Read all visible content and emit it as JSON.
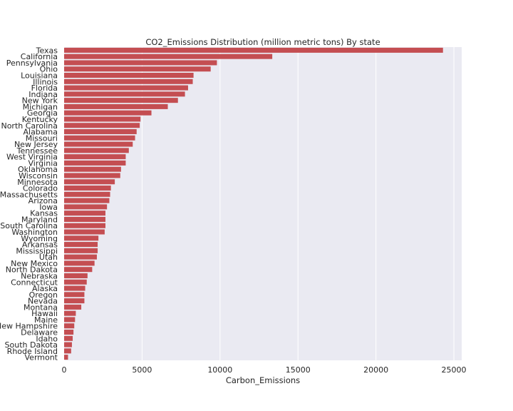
{
  "chart_data": {
    "type": "bar",
    "orientation": "horizontal",
    "title": "CO2_Emissions Distribution (million metric tons) By state",
    "xlabel": "Carbon_Emissions",
    "ylabel": "",
    "xlim": [
      0,
      25500
    ],
    "xticks": [
      0,
      5000,
      10000,
      15000,
      20000,
      25000
    ],
    "grid": true,
    "bar_color": "#c44e52",
    "background_color": "#eaeaf2",
    "grid_color": "#ffffff",
    "categories": [
      "Texas",
      "California",
      "Pennsylvania",
      "Ohio",
      "Louisiana",
      "Illinois",
      "Florida",
      "Indiana",
      "New York",
      "Michigan",
      "Georgia",
      "Kentucky",
      "North Carolina",
      "Alabama",
      "Missouri",
      "New Jersey",
      "Tennessee",
      "West Virginia",
      "Virginia",
      "Oklahoma",
      "Wisconsin",
      "Minnesota",
      "Colorado",
      "Massachusetts",
      "Arizona",
      "Iowa",
      "Kansas",
      "Maryland",
      "South Carolina",
      "Washington",
      "Wyoming",
      "Arkansas",
      "Mississippi",
      "Utah",
      "New Mexico",
      "North Dakota",
      "Nebraska",
      "Connecticut",
      "Alaska",
      "Oregon",
      "Nevada",
      "Montana",
      "Hawaii",
      "Maine",
      "New Hampshire",
      "Delaware",
      "Idaho",
      "South Dakota",
      "Rhode Island",
      "Vermont"
    ],
    "values": [
      24300,
      13350,
      9800,
      9400,
      8300,
      8250,
      7950,
      7750,
      7300,
      6650,
      5600,
      4900,
      4850,
      4650,
      4550,
      4400,
      4150,
      3950,
      3950,
      3650,
      3600,
      3250,
      3000,
      2950,
      2900,
      2750,
      2650,
      2650,
      2650,
      2600,
      2200,
      2150,
      2150,
      2100,
      1950,
      1800,
      1500,
      1450,
      1350,
      1300,
      1300,
      1100,
      750,
      700,
      650,
      600,
      550,
      500,
      450,
      250
    ]
  }
}
